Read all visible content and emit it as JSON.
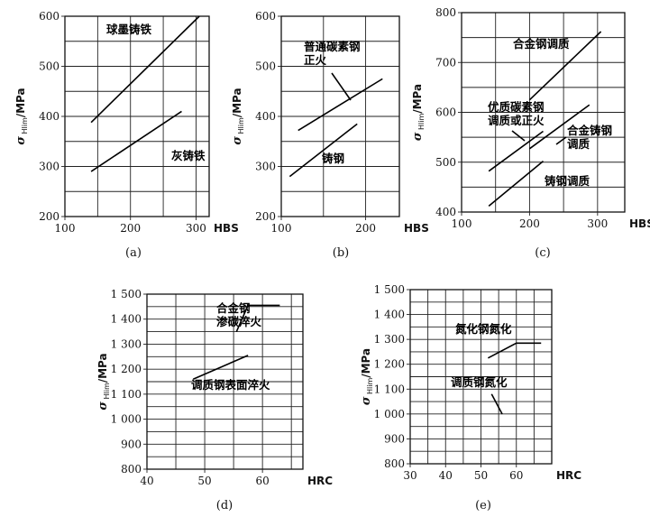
{
  "ylabel": {
    "sigma": "σ",
    "sub": "Hlim",
    "unit": "/MPa"
  },
  "chart_data": [
    {
      "type": "line",
      "panel": "(a)",
      "xlabel": "HBS",
      "xlim": [
        100,
        320
      ],
      "ylim": [
        200,
        600
      ],
      "xticks": [
        100,
        200,
        300
      ],
      "yticks": [
        200,
        300,
        400,
        500,
        600
      ],
      "xgrid": [
        150,
        200,
        250,
        300
      ],
      "ygrid": [
        250,
        300,
        350,
        400,
        450,
        500,
        550
      ],
      "series": [
        {
          "name": "球墨铸铁",
          "x": [
            140,
            305
          ],
          "y": [
            388,
            600
          ]
        },
        {
          "name": "灰铸铁",
          "x": [
            140,
            278
          ],
          "y": [
            290,
            410
          ]
        }
      ]
    },
    {
      "type": "line",
      "panel": "(b)",
      "xlabel": "HBS",
      "xlim": [
        100,
        240
      ],
      "ylim": [
        200,
        600
      ],
      "xticks": [
        100,
        200
      ],
      "yticks": [
        200,
        300,
        400,
        500,
        600
      ],
      "xgrid": [
        150,
        200
      ],
      "ygrid": [
        250,
        300,
        350,
        400,
        450,
        500,
        550
      ],
      "series": [
        {
          "name": "普通碳素钢\n正火",
          "x": [
            120,
            220
          ],
          "y": [
            372,
            475
          ]
        },
        {
          "name": "铸钢",
          "x": [
            110,
            190
          ],
          "y": [
            280,
            385
          ]
        }
      ]
    },
    {
      "type": "line",
      "panel": "(c)",
      "xlabel": "HBS",
      "xlim": [
        100,
        340
      ],
      "ylim": [
        400,
        800
      ],
      "xticks": [
        100,
        200,
        300
      ],
      "yticks": [
        400,
        500,
        600,
        700,
        800
      ],
      "xgrid": [
        150,
        200,
        250,
        300
      ],
      "ygrid": [
        450,
        500,
        550,
        600,
        650,
        700,
        750
      ],
      "series": [
        {
          "name": "合金钢调质",
          "x": [
            200,
            305
          ],
          "y": [
            625,
            762
          ]
        },
        {
          "name": "优质碳素钢\n调质或正火",
          "x": [
            140,
            220
          ],
          "y": [
            482,
            562
          ]
        },
        {
          "name": "合金铸钢\n调质",
          "x": [
            200,
            288
          ],
          "y": [
            527,
            615
          ]
        },
        {
          "name": "铸钢调质",
          "x": [
            140,
            220
          ],
          "y": [
            412,
            502
          ]
        }
      ]
    },
    {
      "type": "line",
      "panel": "(d)",
      "xlabel": "HRC",
      "xlim": [
        40,
        67
      ],
      "ylim": [
        800,
        1500
      ],
      "xticks": [
        40,
        50,
        60
      ],
      "yticks": [
        800,
        900,
        1000,
        1100,
        1200,
        1300,
        1400,
        1500
      ],
      "xticklabels": [
        "40",
        "50",
        "60"
      ],
      "yticklabels": [
        "800",
        "900",
        "1 000",
        "1 100",
        "1 200",
        "1 300",
        "1 400",
        "1 500"
      ],
      "xgrid": [
        45,
        50,
        55,
        60,
        65
      ],
      "ygrid": [
        850,
        900,
        950,
        1000,
        1050,
        1100,
        1150,
        1200,
        1250,
        1300,
        1350,
        1400,
        1450
      ],
      "series": [
        {
          "name": "合金钢\n渗碳淬火",
          "x": [
            55.5,
            57.5,
            63
          ],
          "y": [
            1350,
            1455,
            1455
          ]
        },
        {
          "name": "调质钢表面淬火",
          "x": [
            48,
            57.5
          ],
          "y": [
            1160,
            1255
          ]
        }
      ]
    },
    {
      "type": "line",
      "panel": "(e)",
      "xlabel": "HRC",
      "xlim": [
        30,
        70
      ],
      "ylim": [
        800,
        1500
      ],
      "xticks": [
        30,
        40,
        50,
        60
      ],
      "yticks": [
        800,
        900,
        1000,
        1100,
        1200,
        1300,
        1400,
        1500
      ],
      "yticklabels": [
        "800",
        "900",
        "1 000",
        "1 100",
        "1 200",
        "1 300",
        "1 400",
        "1 500"
      ],
      "xgrid": [
        35,
        40,
        45,
        50,
        55,
        60,
        65
      ],
      "ygrid": [
        850,
        900,
        950,
        1000,
        1050,
        1100,
        1150,
        1200,
        1250,
        1300,
        1350,
        1400,
        1450
      ],
      "series": [
        {
          "name": "氮化钢氮化",
          "x": [
            52,
            60,
            67
          ],
          "y": [
            1225,
            1285,
            1285
          ]
        },
        {
          "name": "调质钢氮化",
          "x": [
            53,
            56
          ],
          "y": [
            1080,
            1000
          ]
        }
      ]
    }
  ]
}
